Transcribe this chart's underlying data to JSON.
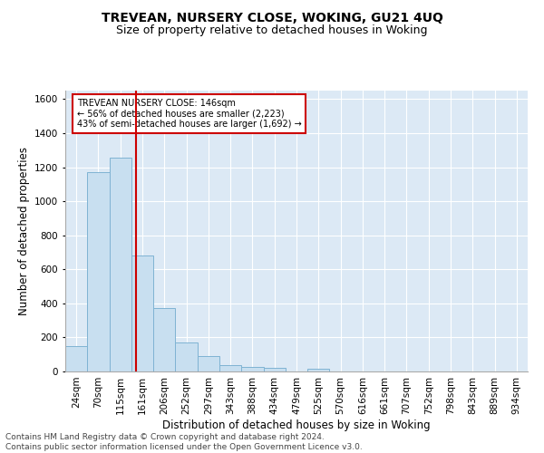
{
  "title": "TREVEAN, NURSERY CLOSE, WOKING, GU21 4UQ",
  "subtitle": "Size of property relative to detached houses in Woking",
  "xlabel": "Distribution of detached houses by size in Woking",
  "ylabel": "Number of detached properties",
  "categories": [
    "24sqm",
    "70sqm",
    "115sqm",
    "161sqm",
    "206sqm",
    "252sqm",
    "297sqm",
    "343sqm",
    "388sqm",
    "434sqm",
    "479sqm",
    "525sqm",
    "570sqm",
    "616sqm",
    "661sqm",
    "707sqm",
    "752sqm",
    "798sqm",
    "843sqm",
    "889sqm",
    "934sqm"
  ],
  "values": [
    148,
    1170,
    1255,
    680,
    370,
    170,
    88,
    35,
    25,
    20,
    0,
    15,
    0,
    0,
    0,
    0,
    0,
    0,
    0,
    0,
    0
  ],
  "bar_color": "#c8dff0",
  "bar_edge_color": "#7fb3d3",
  "annotation_text": "TREVEAN NURSERY CLOSE: 146sqm\n← 56% of detached houses are smaller (2,223)\n43% of semi-detached houses are larger (1,692) →",
  "annotation_box_color": "#ffffff",
  "annotation_box_edge_color": "#cc0000",
  "ylim": [
    0,
    1650
  ],
  "yticks": [
    0,
    200,
    400,
    600,
    800,
    1000,
    1200,
    1400,
    1600
  ],
  "background_color": "#dce9f5",
  "footer_text": "Contains HM Land Registry data © Crown copyright and database right 2024.\nContains public sector information licensed under the Open Government Licence v3.0.",
  "title_fontsize": 10,
  "subtitle_fontsize": 9,
  "xlabel_fontsize": 8.5,
  "ylabel_fontsize": 8.5,
  "tick_fontsize": 7.5,
  "footer_fontsize": 6.5,
  "red_line_x": 2.72
}
